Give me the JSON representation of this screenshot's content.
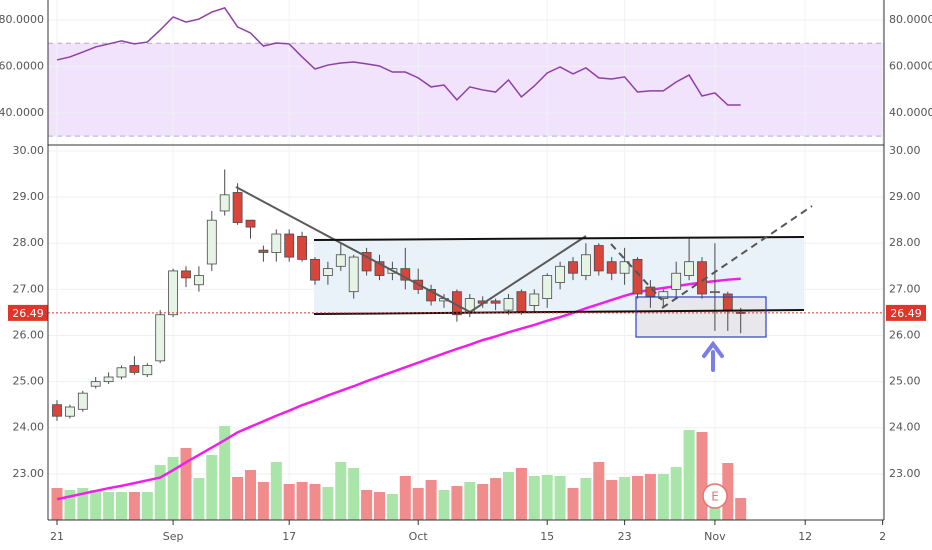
{
  "chart_data": [
    {
      "type": "line",
      "color": "#8e3fa8",
      "band": [
        30,
        70
      ],
      "band_color": "#f1e3fb",
      "ylim": [
        26.2,
        88.6
      ],
      "yticks": [
        {
          "value": 80,
          "label": "80.0000"
        },
        {
          "value": 60,
          "label": "60.0000"
        },
        {
          "value": 40,
          "label": "40.0000"
        }
      ],
      "values": [
        62.8,
        64.1,
        66.2,
        68.4,
        69.7,
        71.0,
        69.7,
        70.5,
        75.7,
        81.3,
        79.1,
        80.4,
        83.4,
        85.2,
        77.0,
        74.4,
        68.8,
        70.1,
        69.7,
        64.1,
        58.9,
        60.6,
        61.5,
        61.9,
        61.1,
        60.2,
        57.6,
        57.6,
        55.1,
        51.2,
        52.0,
        45.6,
        51.2,
        49.9,
        49.0,
        54.2,
        46.9,
        51.6,
        57.2,
        59.8,
        56.8,
        59.4,
        55.1,
        54.6,
        55.5,
        49.0,
        49.5,
        49.5,
        53.3,
        56.3,
        47.3,
        48.6,
        43.4,
        43.4
      ]
    },
    {
      "type": "candlestick",
      "up_color": "#e6f4e6",
      "down_color": "#d8463b",
      "outline_color": "#4a4a4a",
      "volume_up_color": "#a9e5a9",
      "volume_down_color": "#f08c8c",
      "grid": true,
      "ylim": [
        22,
        30.13
      ],
      "yticks": [
        {
          "value": 30,
          "label": "30.00"
        },
        {
          "value": 29,
          "label": "29.00"
        },
        {
          "value": 28,
          "label": "28.00"
        },
        {
          "value": 27,
          "label": "27.00"
        },
        {
          "value": 26,
          "label": "26.00"
        },
        {
          "value": 25,
          "label": "25.00"
        },
        {
          "value": 24,
          "label": "24.00"
        },
        {
          "value": 23,
          "label": "23.00"
        }
      ],
      "categories": [
        "21",
        null,
        null,
        null,
        null,
        null,
        null,
        null,
        null,
        "Sep",
        null,
        null,
        null,
        null,
        null,
        null,
        null,
        null,
        "17",
        null,
        null,
        null,
        null,
        null,
        null,
        null,
        null,
        null,
        "Oct",
        null,
        null,
        null,
        null,
        null,
        null,
        null,
        null,
        null,
        "15",
        null,
        null,
        null,
        null,
        null,
        "23",
        null,
        null,
        null,
        null,
        null,
        null,
        "Nov",
        null,
        null,
        null,
        null,
        null,
        null,
        "12",
        null,
        null,
        null,
        null,
        null,
        "2"
      ],
      "open": [
        24.5,
        24.25,
        24.4,
        24.9,
        25.0,
        25.1,
        25.35,
        25.15,
        25.45,
        26.45,
        27.4,
        27.1,
        27.55,
        28.7,
        29.1,
        28.5,
        27.85,
        27.8,
        28.2,
        28.15,
        27.65,
        27.3,
        27.5,
        26.95,
        27.8,
        27.6,
        27.35,
        27.45,
        27.2,
        27.0,
        26.75,
        26.95,
        26.5,
        26.75,
        26.75,
        26.55,
        26.95,
        26.65,
        26.8,
        27.15,
        27.6,
        27.3,
        27.95,
        27.6,
        27.35,
        27.65,
        27.05,
        26.8,
        27.0,
        27.3,
        27.6,
        26.95,
        26.9,
        26.5,
        null,
        null,
        null,
        null,
        null,
        null,
        null,
        null,
        null,
        null,
        null
      ],
      "high": [
        24.6,
        24.5,
        24.8,
        25.1,
        25.2,
        25.35,
        25.55,
        25.4,
        26.55,
        27.45,
        27.5,
        27.5,
        28.7,
        29.6,
        29.3,
        28.5,
        27.95,
        28.3,
        28.3,
        28.25,
        27.7,
        27.6,
        28.0,
        27.75,
        27.9,
        27.75,
        27.6,
        27.9,
        27.45,
        27.1,
        26.9,
        27.0,
        26.9,
        26.85,
        26.8,
        26.9,
        27.0,
        27.0,
        27.35,
        27.6,
        27.7,
        28.0,
        28.0,
        27.7,
        27.9,
        27.7,
        27.2,
        27.0,
        27.6,
        28.1,
        27.7,
        28.0,
        26.95,
        26.6,
        null,
        null,
        null,
        null,
        null,
        null,
        null,
        null,
        null,
        null,
        null
      ],
      "low": [
        24.15,
        24.2,
        24.35,
        24.85,
        24.95,
        25.05,
        25.15,
        25.1,
        25.4,
        26.4,
        27.05,
        26.95,
        27.4,
        28.6,
        28.4,
        28.1,
        27.6,
        27.6,
        27.6,
        27.6,
        27.1,
        27.1,
        27.4,
        26.8,
        27.3,
        27.2,
        27.2,
        27.0,
        26.9,
        26.65,
        26.6,
        26.3,
        26.4,
        26.6,
        26.55,
        26.45,
        26.45,
        26.5,
        26.6,
        27.0,
        27.2,
        27.2,
        27.3,
        27.2,
        27.1,
        26.8,
        26.6,
        26.6,
        26.8,
        27.2,
        26.8,
        26.1,
        26.1,
        26.05,
        null,
        null,
        null,
        null,
        null,
        null,
        null,
        null,
        null,
        null,
        null
      ],
      "close": [
        24.25,
        24.45,
        24.75,
        25.0,
        25.1,
        25.3,
        25.2,
        25.35,
        26.45,
        27.4,
        27.25,
        27.3,
        28.5,
        29.05,
        28.45,
        28.35,
        27.8,
        28.2,
        27.7,
        27.65,
        27.2,
        27.45,
        27.75,
        27.7,
        27.4,
        27.3,
        27.45,
        27.2,
        27.0,
        26.75,
        26.8,
        26.45,
        26.8,
        26.7,
        26.7,
        26.8,
        26.5,
        26.9,
        27.3,
        27.5,
        27.35,
        27.75,
        27.4,
        27.35,
        27.6,
        26.9,
        26.85,
        26.95,
        27.35,
        27.6,
        26.9,
        26.95,
        26.55,
        26.49,
        null,
        null,
        null,
        null,
        null,
        null,
        null,
        null,
        null,
        null,
        null
      ],
      "volume": [
        3.2,
        3.0,
        3.2,
        3.0,
        2.8,
        2.8,
        2.8,
        2.8,
        5.5,
        6.3,
        7.2,
        4.2,
        6.5,
        9.4,
        4.3,
        5.0,
        3.8,
        5.8,
        3.6,
        3.8,
        3.6,
        3.3,
        5.8,
        5.2,
        3.0,
        2.8,
        2.6,
        4.4,
        3.2,
        4.0,
        3.0,
        3.4,
        3.8,
        3.6,
        4.2,
        4.8,
        5.2,
        4.4,
        4.5,
        4.4,
        3.2,
        4.2,
        5.8,
        4.0,
        4.3,
        4.4,
        4.6,
        4.6,
        5.3,
        9.0,
        8.8,
        3.4,
        5.7,
        2.2,
        null,
        null,
        null,
        null,
        null,
        null,
        null,
        null,
        null,
        null,
        null
      ],
      "moving_average": {
        "color": "#f01fe8",
        "values": [
          22.45,
          22.51,
          22.57,
          22.63,
          22.69,
          22.74,
          22.8,
          22.86,
          22.92,
          23.08,
          23.25,
          23.41,
          23.57,
          23.73,
          23.9,
          24.02,
          24.14,
          24.26,
          24.37,
          24.49,
          24.59,
          24.7,
          24.8,
          24.9,
          25.01,
          25.11,
          25.21,
          25.31,
          25.41,
          25.51,
          25.61,
          25.71,
          25.8,
          25.9,
          25.98,
          26.07,
          26.15,
          26.23,
          26.32,
          26.4,
          26.49,
          26.59,
          26.68,
          26.77,
          26.86,
          26.94,
          26.99,
          27.03,
          27.07,
          27.11,
          27.15,
          27.18,
          27.21,
          27.23,
          null,
          null,
          null,
          null,
          null,
          null,
          null,
          null,
          null,
          null,
          null
        ]
      },
      "last_price": 26.49,
      "last_price_color": "#e0352b",
      "earnings_marker": "E"
    }
  ]
}
